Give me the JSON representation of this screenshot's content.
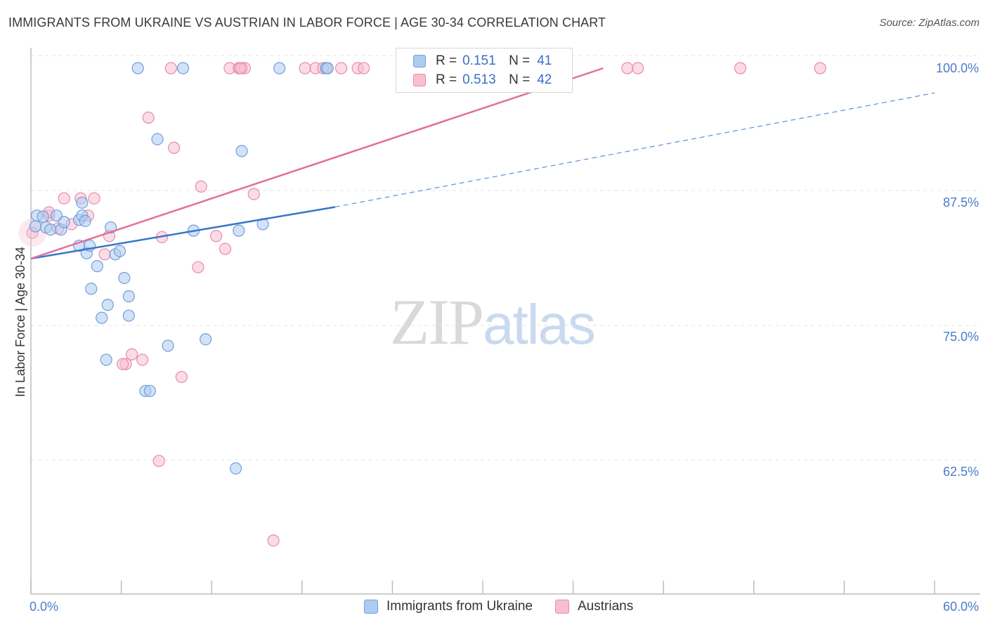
{
  "header": {
    "title": "IMMIGRANTS FROM UKRAINE VS AUSTRIAN IN LABOR FORCE | AGE 30-34 CORRELATION CHART",
    "source": "Source: ZipAtlas.com"
  },
  "watermark": {
    "zip": "ZIP",
    "atlas": "atlas"
  },
  "legend": {
    "rows": [
      {
        "r_label": "R =",
        "r_value": "0.151",
        "n_label": "N =",
        "n_value": "41"
      },
      {
        "r_label": "R =",
        "r_value": "0.513",
        "n_label": "N =",
        "n_value": "42"
      }
    ]
  },
  "colors": {
    "blue_fill": "#aecbf0",
    "blue_stroke": "#6f9fdc",
    "blue_line": "#3776c9",
    "pink_fill": "#f7bfd1",
    "pink_stroke": "#e98aa9",
    "pink_line": "#e0709a",
    "grid": "#e3e3e3",
    "tick_text": "#4a7cc9"
  },
  "chart_data": {
    "type": "scatter",
    "title": "IMMIGRANTS FROM UKRAINE VS AUSTRIAN IN LABOR FORCE | AGE 30-34 CORRELATION CHART",
    "xlabel": "",
    "ylabel": "In Labor Force | Age 30-34",
    "xlim": [
      0,
      60
    ],
    "ylim": [
      51.5,
      101.5
    ],
    "x_tick_labels": [
      {
        "value": 0,
        "label": "0.0%"
      },
      {
        "value": 60,
        "label": "60.0%"
      }
    ],
    "x_minor_ticks": [
      0,
      6,
      12,
      18,
      24,
      30,
      36,
      42,
      48,
      54,
      60
    ],
    "y_tick_labels": [
      {
        "value": 100,
        "label": "100.0%"
      },
      {
        "value": 87.5,
        "label": "87.5%"
      },
      {
        "value": 75,
        "label": "75.0%"
      },
      {
        "value": 62.5,
        "label": "62.5%"
      }
    ],
    "y_gridlines": [
      101.5,
      87.5,
      75,
      62.5
    ],
    "series": [
      {
        "name": "Immigrants from Ukraine",
        "color": "#aecbf0",
        "R": 0.151,
        "N": 41,
        "trend": {
          "x0": 0,
          "y0": 82.3,
          "x1": 20.2,
          "y1": 87.1,
          "dashed_to_x": 60,
          "dashed_to_y": 97.7
        },
        "points": [
          [
            0.3,
            85.3
          ],
          [
            0.4,
            86.3
          ],
          [
            0.8,
            86.2
          ],
          [
            1.0,
            85.2
          ],
          [
            1.3,
            85.0
          ],
          [
            1.7,
            86.3
          ],
          [
            2.0,
            85.0
          ],
          [
            2.2,
            85.7
          ],
          [
            3.2,
            85.9
          ],
          [
            3.4,
            86.3
          ],
          [
            3.6,
            85.8
          ],
          [
            3.4,
            87.5
          ],
          [
            3.2,
            83.5
          ],
          [
            3.7,
            82.8
          ],
          [
            3.9,
            83.5
          ],
          [
            4.4,
            81.6
          ],
          [
            4.0,
            79.5
          ],
          [
            5.3,
            85.2
          ],
          [
            5.6,
            82.7
          ],
          [
            5.9,
            83.0
          ],
          [
            6.2,
            80.5
          ],
          [
            6.5,
            78.8
          ],
          [
            6.5,
            77.0
          ],
          [
            5.1,
            78.0
          ],
          [
            4.7,
            76.8
          ],
          [
            5.0,
            72.9
          ],
          [
            7.6,
            70.0
          ],
          [
            7.9,
            70.0
          ],
          [
            8.4,
            93.4
          ],
          [
            9.1,
            74.2
          ],
          [
            10.8,
            84.9
          ],
          [
            11.6,
            74.8
          ],
          [
            13.8,
            84.9
          ],
          [
            14.0,
            92.3
          ],
          [
            15.4,
            85.5
          ],
          [
            13.6,
            62.8
          ],
          [
            7.1,
            100.0
          ],
          [
            10.1,
            100.0
          ],
          [
            16.5,
            100.0
          ],
          [
            19.6,
            100.0
          ],
          [
            19.7,
            100.0
          ]
        ]
      },
      {
        "name": "Austrians",
        "color": "#f7bfd1",
        "R": 0.513,
        "N": 42,
        "trend": {
          "x0": 0,
          "y0": 82.3,
          "x1": 38.0,
          "y1": 100.0
        },
        "points": [
          [
            0.1,
            84.7
          ],
          [
            1.2,
            86.3
          ],
          [
            1.2,
            86.6
          ],
          [
            1.8,
            85.1
          ],
          [
            2.2,
            87.9
          ],
          [
            2.7,
            85.5
          ],
          [
            3.3,
            87.9
          ],
          [
            3.8,
            86.3
          ],
          [
            4.2,
            87.9
          ],
          [
            4.9,
            82.7
          ],
          [
            5.2,
            84.4
          ],
          [
            6.3,
            72.5
          ],
          [
            6.1,
            72.5
          ],
          [
            6.7,
            73.4
          ],
          [
            7.4,
            72.9
          ],
          [
            7.8,
            95.4
          ],
          [
            8.5,
            63.5
          ],
          [
            8.7,
            84.3
          ],
          [
            9.5,
            92.6
          ],
          [
            10.0,
            71.3
          ],
          [
            11.1,
            81.5
          ],
          [
            11.3,
            89.0
          ],
          [
            12.3,
            84.4
          ],
          [
            12.9,
            83.2
          ],
          [
            14.8,
            88.3
          ],
          [
            16.1,
            56.1
          ],
          [
            9.3,
            100.0
          ],
          [
            13.2,
            100.0
          ],
          [
            13.8,
            100.0
          ],
          [
            14.0,
            100.0
          ],
          [
            14.2,
            100.0
          ],
          [
            18.2,
            100.0
          ],
          [
            18.9,
            100.0
          ],
          [
            19.4,
            100.0
          ],
          [
            20.6,
            100.0
          ],
          [
            21.7,
            100.0
          ],
          [
            22.1,
            100.0
          ],
          [
            39.6,
            100.0
          ],
          [
            40.3,
            100.0
          ],
          [
            47.1,
            100.0
          ],
          [
            52.4,
            100.0
          ],
          [
            13.9,
            100.0
          ]
        ]
      }
    ]
  }
}
